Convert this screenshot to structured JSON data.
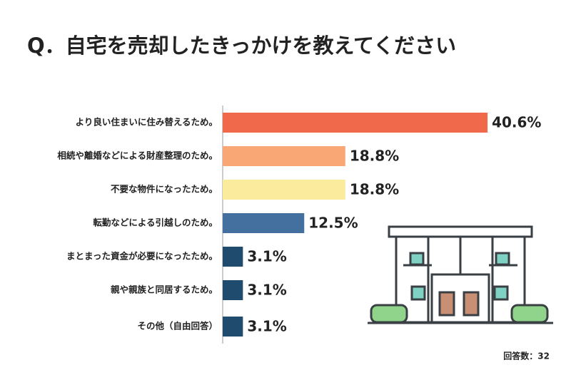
{
  "chart_data": {
    "type": "bar",
    "orientation": "horizontal",
    "title": "Q．自宅を売却したきっかけを教えてください",
    "categories": [
      "より良い住まいに住み替えるため。",
      "相続や離婚などによる財産整理のため。",
      "不要な物件になったため。",
      "転勤などによる引越しのため。",
      "まとまった資金が必要になったため。",
      "親や親族と同居するため。",
      "その他（自由回答）"
    ],
    "values": [
      40.6,
      18.8,
      18.8,
      12.5,
      3.1,
      3.1,
      3.1
    ],
    "value_labels": [
      "40.6%",
      "18.8%",
      "18.8%",
      "12.5%",
      "3.1%",
      "3.1%",
      "3.1%"
    ],
    "colors": [
      "#f0694a",
      "#f9a875",
      "#fbeb9d",
      "#44709f",
      "#1e4b6e",
      "#1e4b6e",
      "#1e4b6e"
    ],
    "note": "回答数：32"
  }
}
